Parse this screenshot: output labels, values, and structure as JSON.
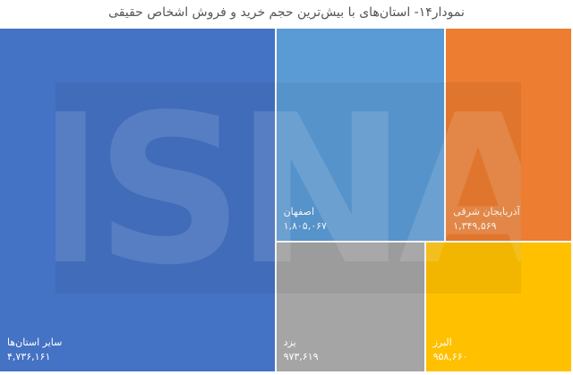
{
  "chart_data": {
    "type": "treemap",
    "title": "نمودار۱۴- استان‌های با بیش‌ترین حجم خرید و فروش اشخاص حقیقی",
    "items": [
      {
        "label": "سایر استان‌ها",
        "value": 4736161,
        "value_text": "۴,۷۳۶,۱۶۱",
        "color": "#4472C4"
      },
      {
        "label": "اصفهان",
        "value": 1805067,
        "value_text": "۱,۸۰۵,۰۶۷",
        "color": "#5B9BD5"
      },
      {
        "label": "آذربایجان شرقی",
        "value": 1349569,
        "value_text": "۱,۳۴۹,۵۶۹",
        "color": "#ED7D31"
      },
      {
        "label": "یزد",
        "value": 973619,
        "value_text": "۹۷۳,۶۱۹",
        "color": "#A5A5A5"
      },
      {
        "label": "البرز",
        "value": 958660,
        "value_text": "۹۵۸,۶۶۰",
        "color": "#FFC000"
      }
    ]
  },
  "watermark": {
    "text": "ISNA"
  }
}
